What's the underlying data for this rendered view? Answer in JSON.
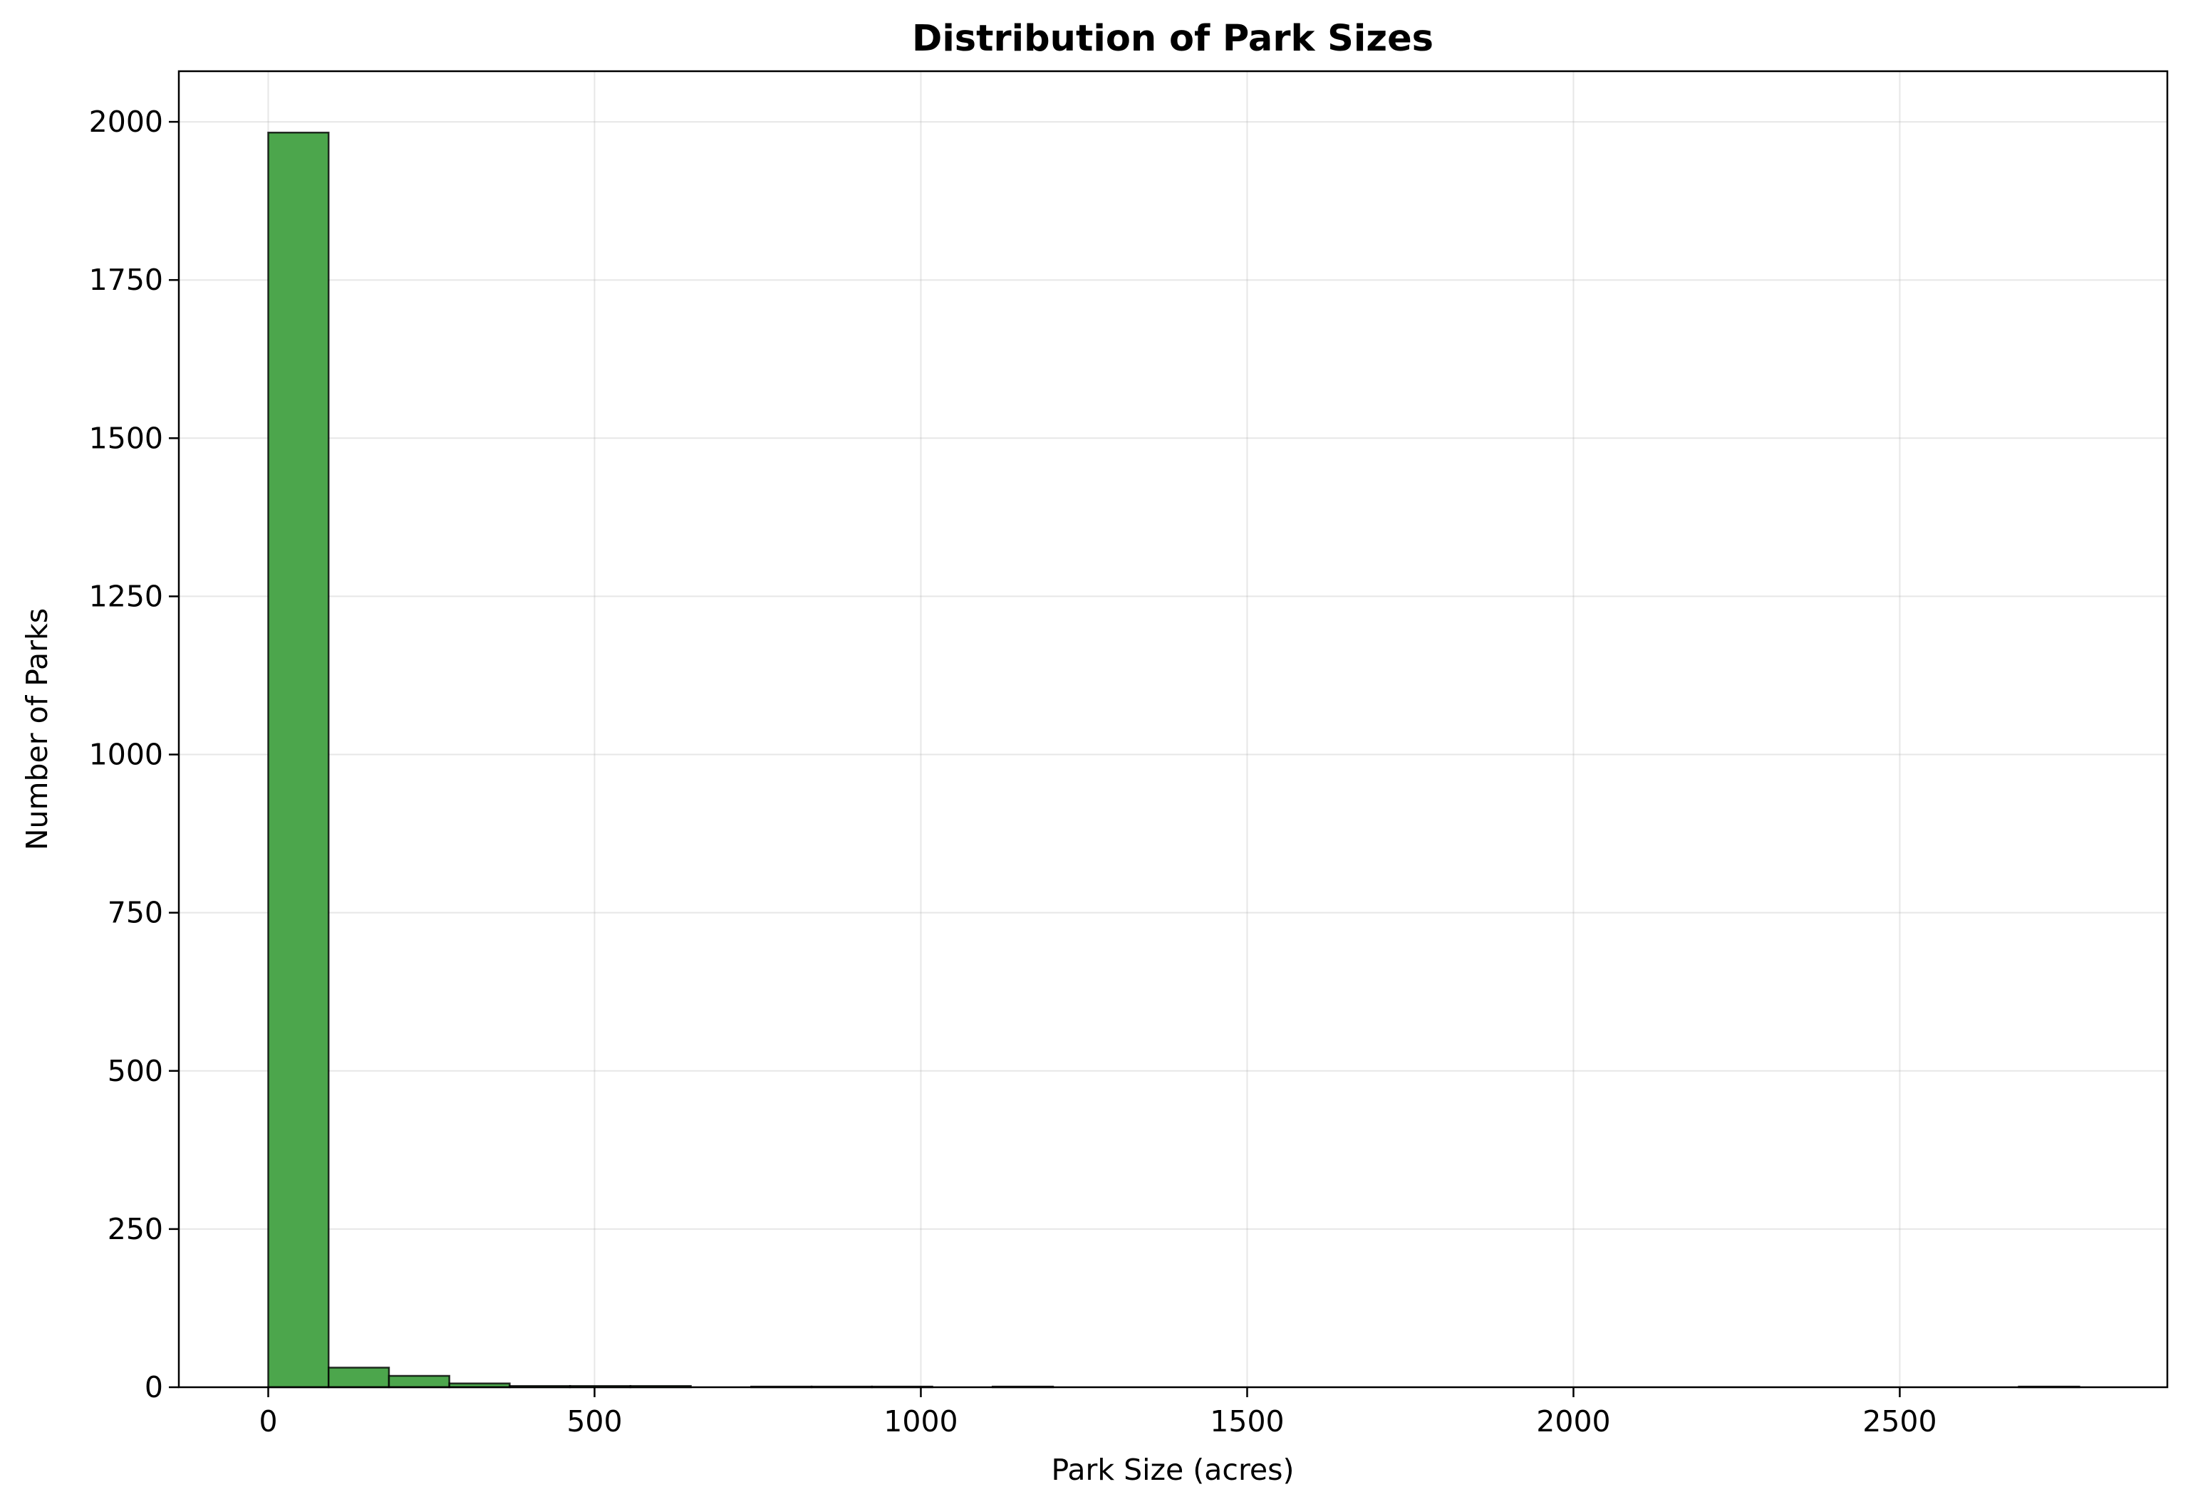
{
  "chart_data": {
    "type": "bar",
    "title": "Distribution of Park Sizes",
    "xlabel": "Park Size (acres)",
    "ylabel": "Number of Parks",
    "xlim": [
      -137,
      2910
    ],
    "ylim": [
      0,
      2080
    ],
    "xticks": [
      0,
      500,
      1000,
      1500,
      2000,
      2500
    ],
    "yticks": [
      0,
      250,
      500,
      750,
      1000,
      1250,
      1500,
      1750,
      2000
    ],
    "grid": true,
    "bar_color": "#4ca64c",
    "edge_color": "#000000",
    "bins": [
      {
        "x0": 0,
        "x1": 92.5,
        "count": 1983
      },
      {
        "x0": 92.5,
        "x1": 185,
        "count": 31
      },
      {
        "x0": 185,
        "x1": 277.5,
        "count": 18
      },
      {
        "x0": 277.5,
        "x1": 370,
        "count": 6
      },
      {
        "x0": 370,
        "x1": 462.5,
        "count": 2
      },
      {
        "x0": 462.5,
        "x1": 555,
        "count": 2
      },
      {
        "x0": 555,
        "x1": 647.5,
        "count": 2
      },
      {
        "x0": 647.5,
        "x1": 740,
        "count": 0
      },
      {
        "x0": 740,
        "x1": 832.5,
        "count": 1
      },
      {
        "x0": 832.5,
        "x1": 925,
        "count": 1
      },
      {
        "x0": 925,
        "x1": 1017.5,
        "count": 1
      },
      {
        "x0": 1017.5,
        "x1": 1110,
        "count": 0
      },
      {
        "x0": 1110,
        "x1": 1202.5,
        "count": 1
      },
      {
        "x0": 1202.5,
        "x1": 1295,
        "count": 0
      },
      {
        "x0": 1295,
        "x1": 1387.5,
        "count": 0
      },
      {
        "x0": 1387.5,
        "x1": 1480,
        "count": 0
      },
      {
        "x0": 1480,
        "x1": 1572.5,
        "count": 0
      },
      {
        "x0": 1572.5,
        "x1": 1665,
        "count": 0
      },
      {
        "x0": 1665,
        "x1": 1757.5,
        "count": 0
      },
      {
        "x0": 1757.5,
        "x1": 1850,
        "count": 0
      },
      {
        "x0": 1850,
        "x1": 1942.5,
        "count": 0
      },
      {
        "x0": 1942.5,
        "x1": 2035,
        "count": 0
      },
      {
        "x0": 2035,
        "x1": 2127.5,
        "count": 0
      },
      {
        "x0": 2127.5,
        "x1": 2220,
        "count": 0
      },
      {
        "x0": 2220,
        "x1": 2312.5,
        "count": 0
      },
      {
        "x0": 2312.5,
        "x1": 2405,
        "count": 0
      },
      {
        "x0": 2405,
        "x1": 2497.5,
        "count": 0
      },
      {
        "x0": 2497.5,
        "x1": 2590,
        "count": 0
      },
      {
        "x0": 2590,
        "x1": 2682.5,
        "count": 0
      },
      {
        "x0": 2682.5,
        "x1": 2775,
        "count": 1
      }
    ]
  }
}
